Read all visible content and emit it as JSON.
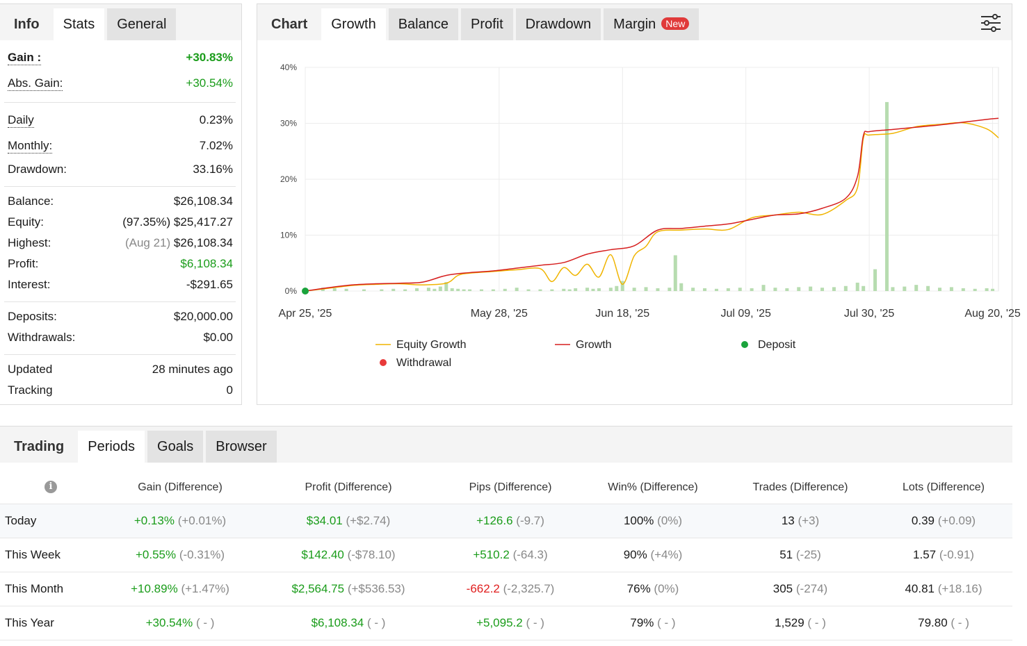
{
  "stats_panel": {
    "tabs": [
      "Info",
      "Stats",
      "General"
    ],
    "gain": {
      "label": "Gain :",
      "value": "+30.83%"
    },
    "abs_gain": {
      "label": "Abs. Gain:",
      "value": "+30.54%"
    },
    "daily": {
      "label": "Daily",
      "value": "0.23%"
    },
    "monthly": {
      "label": "Monthly:",
      "value": "7.02%"
    },
    "drawdown": {
      "label": "Drawdown:",
      "value": "33.16%"
    },
    "balance": {
      "label": "Balance:",
      "value": "$26,108.34"
    },
    "equity": {
      "label": "Equity:",
      "note": "(97.35%)",
      "value": "$25,417.27"
    },
    "highest": {
      "label": "Highest:",
      "note": "(Aug 21)",
      "value": "$26,108.34"
    },
    "profit": {
      "label": "Profit:",
      "value": "$6,108.34"
    },
    "interest": {
      "label": "Interest:",
      "value": "-$291.65"
    },
    "deposits": {
      "label": "Deposits:",
      "value": "$20,000.00"
    },
    "withdrawals": {
      "label": "Withdrawals:",
      "value": "$0.00"
    },
    "updated": {
      "label": "Updated",
      "value": "28 minutes ago"
    },
    "tracking": {
      "label": "Tracking",
      "value": "0"
    }
  },
  "chart_panel": {
    "tabs": [
      "Chart",
      "Growth",
      "Balance",
      "Profit",
      "Drawdown",
      "Margin"
    ],
    "new_badge": "New",
    "settings_icon": "sliders-icon"
  },
  "chart_data": {
    "type": "line",
    "title": "",
    "y_ticks": [
      "40%",
      "30%",
      "20%",
      "10%",
      "0%"
    ],
    "ylim": [
      0,
      40
    ],
    "x_labels": [
      "Apr 25, '25",
      "May 28, '25",
      "Jun 18, '25",
      "Jul 09, '25",
      "Jul 30, '25",
      "Aug 20, '25"
    ],
    "x_days": [
      0,
      33,
      54,
      75,
      96,
      117
    ],
    "xlim": [
      0,
      118
    ],
    "legend": [
      "Equity Growth",
      "Growth",
      "Deposit",
      "Withdrawal"
    ],
    "colors": {
      "equity": "#f0b400",
      "growth": "#d61e1e",
      "deposit": "#1aa33c",
      "withdrawal": "#e83a3a",
      "bars": "#b7dcb0"
    },
    "series": [
      {
        "name": "Growth",
        "x": [
          0,
          4,
          8,
          12,
          16,
          20,
          24,
          28,
          32,
          36,
          40,
          44,
          48,
          52,
          56,
          60,
          64,
          68,
          72,
          76,
          80,
          84,
          88,
          92,
          94,
          95,
          96,
          100,
          104,
          108,
          112,
          116,
          118
        ],
        "y": [
          0,
          0.6,
          1.1,
          1.3,
          1.4,
          1.6,
          2.8,
          3.3,
          3.6,
          4.1,
          4.6,
          5.1,
          6.6,
          7.4,
          8.1,
          10.9,
          11.2,
          11.6,
          12.0,
          12.8,
          13.6,
          13.8,
          14.8,
          16.6,
          20.5,
          27.8,
          28.5,
          28.9,
          29.3,
          29.7,
          30.2,
          30.7,
          30.9
        ]
      },
      {
        "name": "Equity Growth",
        "x": [
          0,
          4,
          8,
          12,
          16,
          20,
          24,
          26,
          28,
          32,
          36,
          40,
          42,
          44,
          46,
          48,
          50,
          52,
          54,
          56,
          58,
          60,
          64,
          68,
          72,
          76,
          80,
          84,
          88,
          92,
          94,
          95,
          96,
          100,
          104,
          108,
          112,
          116,
          118
        ],
        "y": [
          0,
          0.5,
          1.0,
          1.2,
          1.3,
          1.1,
          1.4,
          2.8,
          3.2,
          3.5,
          3.8,
          4.0,
          1.7,
          4.2,
          2.8,
          4.8,
          2.5,
          6.5,
          1.2,
          6.3,
          8.0,
          10.6,
          10.9,
          11.1,
          11.0,
          13.1,
          13.6,
          14.1,
          13.7,
          16.2,
          18.5,
          27.3,
          27.9,
          28.2,
          29.4,
          29.8,
          30.1,
          29.0,
          27.4
        ]
      },
      {
        "name": "Deposit",
        "x": [
          0
        ],
        "y": [
          0
        ]
      },
      {
        "name": "Trade volume bars",
        "x": [
          3,
          5,
          7,
          10,
          13,
          15,
          17,
          19,
          21,
          22,
          23,
          24,
          25,
          26,
          27,
          28,
          30,
          32,
          34,
          36,
          38,
          40,
          42,
          44,
          45,
          46,
          48,
          49,
          50,
          52,
          53,
          54,
          56,
          58,
          60,
          62,
          63,
          64,
          66,
          68,
          70,
          72,
          74,
          76,
          78,
          80,
          82,
          84,
          86,
          88,
          90,
          92,
          94,
          95,
          97,
          99,
          100,
          102,
          104,
          106,
          108,
          110,
          112,
          114,
          116,
          117
        ],
        "y": [
          0.6,
          0.5,
          0.4,
          0.3,
          0.3,
          0.4,
          0.3,
          0.5,
          0.6,
          0.4,
          0.8,
          1.6,
          0.5,
          0.4,
          0.3,
          0.3,
          0.3,
          0.3,
          0.4,
          0.6,
          0.3,
          0.3,
          0.3,
          0.4,
          0.3,
          0.5,
          0.6,
          0.4,
          0.5,
          0.6,
          0.9,
          1.8,
          0.6,
          0.7,
          0.5,
          0.6,
          6.4,
          1.4,
          0.6,
          0.5,
          0.4,
          0.5,
          0.6,
          0.5,
          1.1,
          0.6,
          0.5,
          0.7,
          0.8,
          0.6,
          0.7,
          0.9,
          1.5,
          0.9,
          3.9,
          33.8,
          0.7,
          0.8,
          1.1,
          0.9,
          0.6,
          0.7,
          0.5,
          0.4,
          0.5,
          0.4
        ]
      }
    ]
  },
  "trading_panel": {
    "tabs": [
      "Trading",
      "Periods",
      "Goals",
      "Browser"
    ],
    "info_icon": "info-icon",
    "columns": [
      "Gain (Difference)",
      "Profit (Difference)",
      "Pips (Difference)",
      "Win% (Difference)",
      "Trades (Difference)",
      "Lots (Difference)"
    ],
    "rows": [
      {
        "period": "Today",
        "gain": "+0.13%",
        "gain_d": "(+0.01%)",
        "profit": "$34.01",
        "profit_d": "(+$2.74)",
        "pips": "+126.6",
        "pips_d": "(-9.7)",
        "win": "100%",
        "win_d": "(0%)",
        "trades": "13",
        "trades_d": "(+3)",
        "lots": "0.39",
        "lots_d": "(+0.09)"
      },
      {
        "period": "This Week",
        "gain": "+0.55%",
        "gain_d": "(-0.31%)",
        "profit": "$142.40",
        "profit_d": "(-$78.10)",
        "pips": "+510.2",
        "pips_d": "(-64.3)",
        "win": "90%",
        "win_d": "(+4%)",
        "trades": "51",
        "trades_d": "(-25)",
        "lots": "1.57",
        "lots_d": "(-0.91)"
      },
      {
        "period": "This Month",
        "gain": "+10.89%",
        "gain_d": "(+1.47%)",
        "profit": "$2,564.75",
        "profit_d": "(+$536.53)",
        "pips": "-662.2",
        "pips_d": "(-2,325.7)",
        "win": "76%",
        "win_d": "(0%)",
        "trades": "305",
        "trades_d": "(-274)",
        "lots": "40.81",
        "lots_d": "(+18.16)"
      },
      {
        "period": "This Year",
        "gain": "+30.54%",
        "gain_d": "( - )",
        "profit": "$6,108.34",
        "profit_d": "( - )",
        "pips": "+5,095.2",
        "pips_d": "( - )",
        "win": "79%",
        "win_d": "( - )",
        "trades": "1,529",
        "trades_d": "( - )",
        "lots": "79.80",
        "lots_d": "( - )"
      }
    ]
  }
}
